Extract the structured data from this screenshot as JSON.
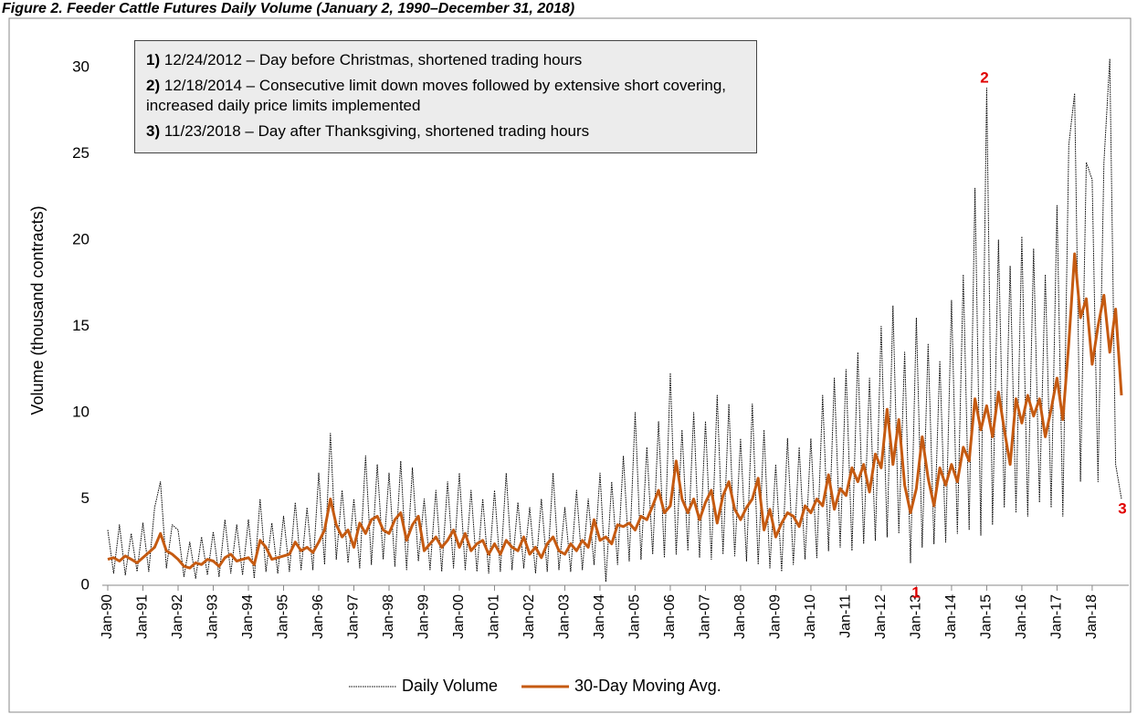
{
  "chart_data": {
    "type": "line",
    "title": "Figure 2. Feeder Cattle Futures Daily Volume (January 2, 1990–December 31, 2018)",
    "y_label": "Volume (thousand contracts)",
    "categories": [
      "Jan-90",
      null,
      null,
      null,
      null,
      null,
      "Jan-91",
      null,
      null,
      null,
      null,
      null,
      "Jan-92",
      null,
      null,
      null,
      null,
      null,
      "Jan-93",
      null,
      null,
      null,
      null,
      null,
      "Jan-94",
      null,
      null,
      null,
      null,
      null,
      "Jan-95",
      null,
      null,
      null,
      null,
      null,
      "Jan-96",
      null,
      null,
      null,
      null,
      null,
      "Jan-97",
      null,
      null,
      null,
      null,
      null,
      "Jan-98",
      null,
      null,
      null,
      null,
      null,
      "Jan-99",
      null,
      null,
      null,
      null,
      null,
      "Jan-00",
      null,
      null,
      null,
      null,
      null,
      "Jan-01",
      null,
      null,
      null,
      null,
      null,
      "Jan-02",
      null,
      null,
      null,
      null,
      null,
      "Jan-03",
      null,
      null,
      null,
      null,
      null,
      "Jan-04",
      null,
      null,
      null,
      null,
      null,
      "Jan-05",
      null,
      null,
      null,
      null,
      null,
      "Jan-06",
      null,
      null,
      null,
      null,
      null,
      "Jan-07",
      null,
      null,
      null,
      null,
      null,
      "Jan-08",
      null,
      null,
      null,
      null,
      null,
      "Jan-09",
      null,
      null,
      null,
      null,
      null,
      "Jan-10",
      null,
      null,
      null,
      null,
      null,
      "Jan-11",
      null,
      null,
      null,
      null,
      null,
      "Jan-12",
      null,
      null,
      null,
      null,
      null,
      "Jan-13",
      null,
      null,
      null,
      null,
      null,
      "Jan-14",
      null,
      null,
      null,
      null,
      null,
      "Jan-15",
      null,
      null,
      null,
      null,
      null,
      "Jan-16",
      null,
      null,
      null,
      null,
      null,
      "Jan-17",
      null,
      null,
      null,
      null,
      null,
      "Jan-18",
      null,
      null,
      null,
      null,
      null
    ],
    "series": [
      {
        "name": "Daily Volume",
        "color": "#000000",
        "style": "dotted",
        "values": [
          3.2,
          0.7,
          3.5,
          0.6,
          3.0,
          0.8,
          3.6,
          0.8,
          4.5,
          6.0,
          1.0,
          3.5,
          3.2,
          0.5,
          2.5,
          0.4,
          2.8,
          0.6,
          3.1,
          0.5,
          3.8,
          0.7,
          3.5,
          0.6,
          3.8,
          0.4,
          5.0,
          0.8,
          3.6,
          0.7,
          4.0,
          0.8,
          4.8,
          0.9,
          4.5,
          0.9,
          6.5,
          1.2,
          8.8,
          1.5,
          5.5,
          1.3,
          5.0,
          1.0,
          7.5,
          1.2,
          7.0,
          1.5,
          6.5,
          1.1,
          7.2,
          0.9,
          6.8,
          1.4,
          5.0,
          0.9,
          5.5,
          0.8,
          6.0,
          1.0,
          6.5,
          0.9,
          5.5,
          0.8,
          5.0,
          0.7,
          5.5,
          0.8,
          6.5,
          0.9,
          4.8,
          1.0,
          4.5,
          0.7,
          5.0,
          0.8,
          6.5,
          0.9,
          4.5,
          0.8,
          5.5,
          0.9,
          5.0,
          1.2,
          6.5,
          0.2,
          6.0,
          1.2,
          7.5,
          1.4,
          10.0,
          1.5,
          8.0,
          1.8,
          9.5,
          1.6,
          12.3,
          1.8,
          9.0,
          2.0,
          10.0,
          1.6,
          9.5,
          1.5,
          11.0,
          1.8,
          10.5,
          1.7,
          8.5,
          1.4,
          10.5,
          1.2,
          9.0,
          1.0,
          7.0,
          0.8,
          8.5,
          1.2,
          8.0,
          1.5,
          8.5,
          1.6,
          11.0,
          2.0,
          12.0,
          2.2,
          12.5,
          2.0,
          13.5,
          2.4,
          12.0,
          2.6,
          15.0,
          2.8,
          16.2,
          3.0,
          13.5,
          1.3,
          15.5,
          2.2,
          14.0,
          2.4,
          13.0,
          2.5,
          16.5,
          3.0,
          18.0,
          3.2,
          23.0,
          2.9,
          28.8,
          3.5,
          20.0,
          4.5,
          18.5,
          4.2,
          20.2,
          4.0,
          19.5,
          4.8,
          18.0,
          4.5,
          22.0,
          4.0,
          25.5,
          28.5,
          6.0,
          24.5,
          23.5,
          6.0,
          24.5,
          30.5,
          7.0,
          5.0
        ]
      },
      {
        "name": "30-Day Moving Avg.",
        "color": "#c55a11",
        "style": "solid",
        "values": [
          1.5,
          1.6,
          1.4,
          1.7,
          1.5,
          1.3,
          1.6,
          1.9,
          2.2,
          3.0,
          2.0,
          1.8,
          1.5,
          1.1,
          1.0,
          1.3,
          1.2,
          1.5,
          1.4,
          1.1,
          1.6,
          1.8,
          1.4,
          1.5,
          1.6,
          1.2,
          2.6,
          2.2,
          1.5,
          1.6,
          1.7,
          1.8,
          2.5,
          2.0,
          2.2,
          1.9,
          2.5,
          3.2,
          5.0,
          3.5,
          2.8,
          3.2,
          2.2,
          3.6,
          3.0,
          3.8,
          4.0,
          3.2,
          3.0,
          3.8,
          4.2,
          2.6,
          3.5,
          4.0,
          2.0,
          2.4,
          2.8,
          2.2,
          2.6,
          3.2,
          2.2,
          3.0,
          2.0,
          2.4,
          2.6,
          1.8,
          2.4,
          1.8,
          2.6,
          2.2,
          2.0,
          2.8,
          1.8,
          2.2,
          1.6,
          2.4,
          2.8,
          2.0,
          1.8,
          2.4,
          2.0,
          2.6,
          2.2,
          3.8,
          2.6,
          2.8,
          2.4,
          3.5,
          3.4,
          3.6,
          3.2,
          4.0,
          3.8,
          4.6,
          5.5,
          4.2,
          4.6,
          7.2,
          5.0,
          4.2,
          5.0,
          3.8,
          4.8,
          5.5,
          3.6,
          5.2,
          6.0,
          4.4,
          3.8,
          4.5,
          5.0,
          6.2,
          3.2,
          4.4,
          2.8,
          3.6,
          4.2,
          4.0,
          3.4,
          4.6,
          4.2,
          5.0,
          4.6,
          6.4,
          4.4,
          5.6,
          5.2,
          6.8,
          6.0,
          7.0,
          5.4,
          7.6,
          6.8,
          10.2,
          7.0,
          9.6,
          5.8,
          4.2,
          5.6,
          8.6,
          6.2,
          4.6,
          6.8,
          5.8,
          7.0,
          6.0,
          8.0,
          7.2,
          10.8,
          9.0,
          10.4,
          8.6,
          11.2,
          9.0,
          7.0,
          10.8,
          9.4,
          11.0,
          9.8,
          10.8,
          8.6,
          10.2,
          12.0,
          9.6,
          14.0,
          19.2,
          15.5,
          16.6,
          12.8,
          15.0,
          16.8,
          13.5,
          16.0,
          11.0
        ]
      }
    ],
    "ylim": [
      0,
      32
    ],
    "yticks": [
      0,
      5,
      10,
      15,
      20,
      25,
      30
    ],
    "grid": false,
    "legend": "bottom",
    "notes": [
      {
        "number": "1)",
        "text": "12/24/2012 – Day before Christmas, shortened trading hours"
      },
      {
        "number": "2)",
        "text": "12/18/2014 – Consecutive limit down moves followed by extensive short covering, increased daily price limits implemented"
      },
      {
        "number": "3)",
        "text": "11/23/2018 – Day after Thanksgiving, shortened trading hours"
      }
    ],
    "event_markers": [
      "1",
      "2",
      "3"
    ]
  }
}
